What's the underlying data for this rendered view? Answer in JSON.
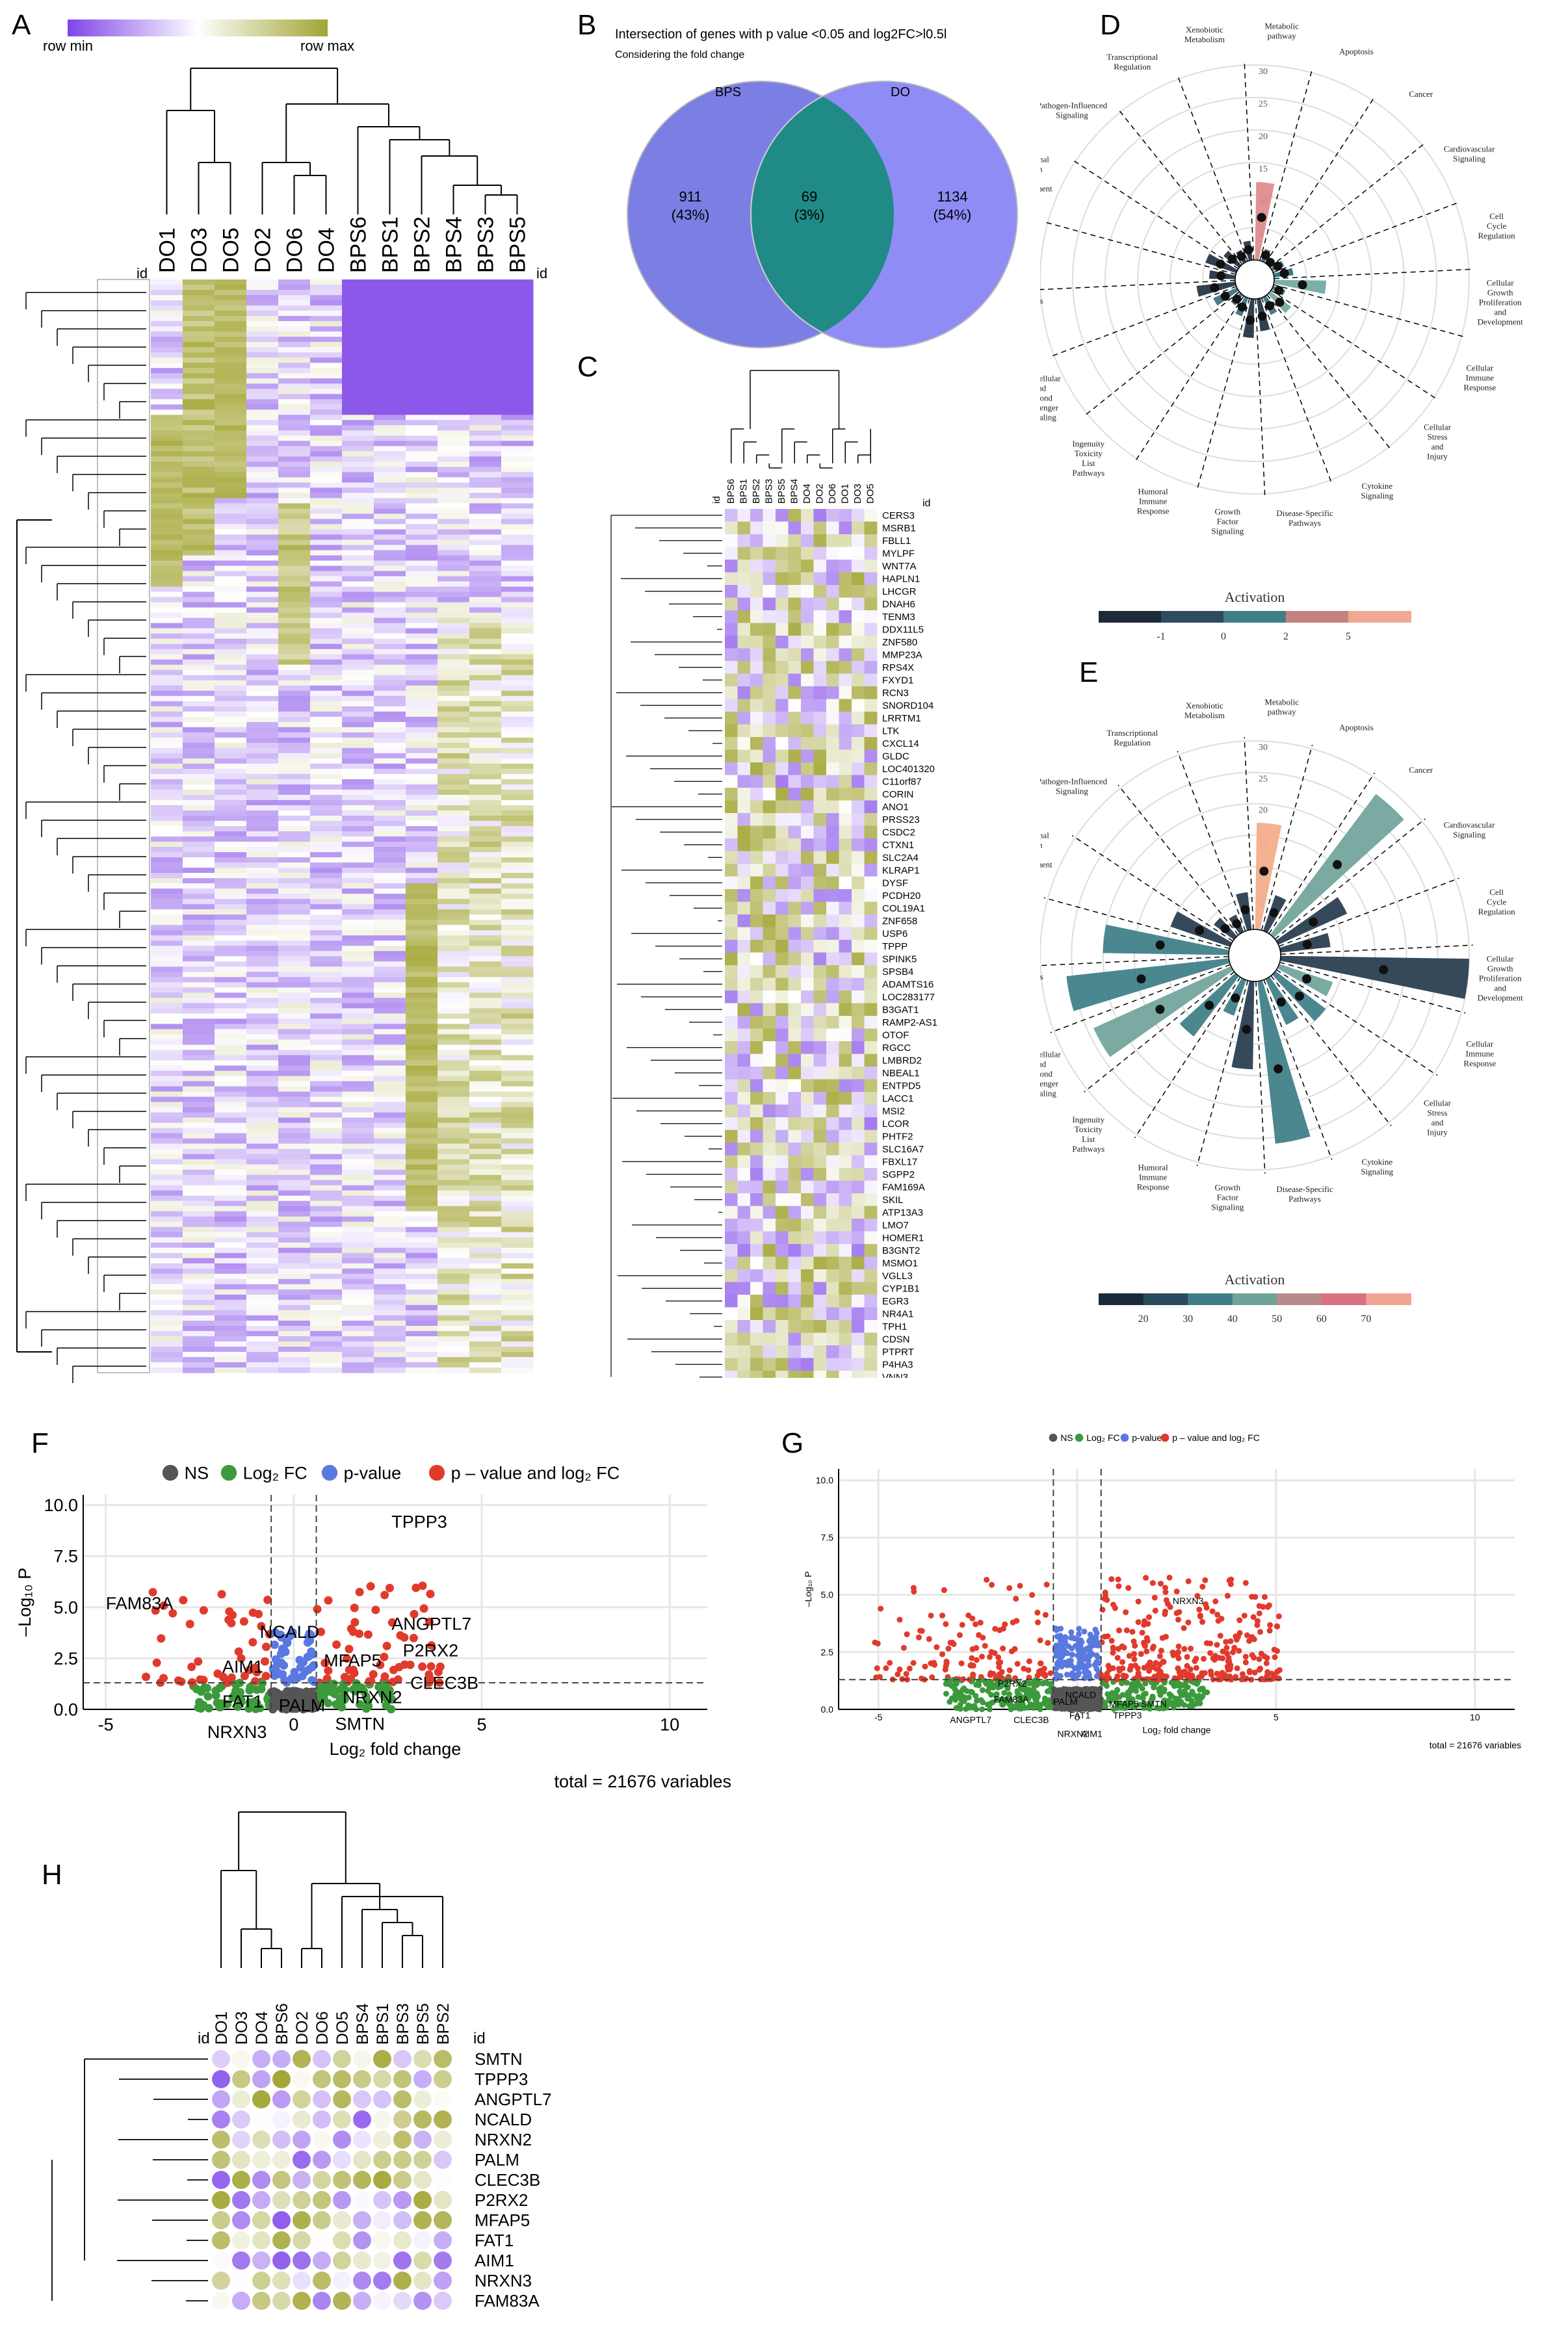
{
  "colors": {
    "row_min": "#7f45e8",
    "row_mid": "#ffffff",
    "row_max": "#a2a533",
    "venn_bps": "#7b7fe3",
    "venn_do": "#8f8cf5",
    "venn_overlap": "#1f8a86",
    "ns": "#555555",
    "fc": "#3c9a3c",
    "pval": "#5a79e0",
    "both": "#e03a2c",
    "radar_d_bar": "#de8a8a",
    "radar_e_bar": "#f3ab87"
  },
  "panelA": {
    "label": "A",
    "legend_min": "row min",
    "legend_max": "row max",
    "id_left": "id",
    "id_right": "id",
    "columns": [
      "DO1",
      "DO3",
      "DO5",
      "DO2",
      "DO6",
      "DO4",
      "BPS6",
      "BPS1",
      "BPS2",
      "BPS4",
      "BPS3",
      "BPS5"
    ]
  },
  "panelB": {
    "label": "B",
    "title": "Intersection of genes with p value <0.05 and log2FC>l0.5l",
    "subtitle": "Considering the fold change",
    "set_left": "BPS",
    "set_right": "DO",
    "left_count": "911",
    "left_pct": "(43%)",
    "mid_count": "69",
    "mid_pct": "(3%)",
    "right_count": "1134",
    "right_pct": "(54%)"
  },
  "panelC": {
    "label": "C",
    "id_top": "id",
    "id_side": "id",
    "columns": [
      "BPS6",
      "BPS1",
      "BPS2",
      "BPS3",
      "BPS5",
      "BPS4",
      "DO4",
      "DO2",
      "DO6",
      "DO1",
      "DO3",
      "DO5"
    ],
    "genes": [
      "CERS3",
      "MSRB1",
      "FBLL1",
      "MYLPF",
      "WNT7A",
      "HAPLN1",
      "LHCGR",
      "DNAH6",
      "TENM3",
      "DDX11L5",
      "ZNF580",
      "MMP23A",
      "RPS4X",
      "FXYD1",
      "RCN3",
      "SNORD104",
      "LRRTM1",
      "LTK",
      "CXCL14",
      "GLDC",
      "LOC401320",
      "C11orf87",
      "CORIN",
      "ANO1",
      "PRSS23",
      "CSDC2",
      "CTXN1",
      "SLC2A4",
      "KLRAP1",
      "DYSF",
      "PCDH20",
      "COL19A1",
      "ZNF658",
      "USP6",
      "TPPP",
      "SPINK5",
      "SPSB4",
      "ADAMTS16",
      "LOC283177",
      "B3GAT1",
      "RAMP2-AS1",
      "OTOF",
      "RGCC",
      "LMBRD2",
      "NBEAL1",
      "ENTPD5",
      "LACC1",
      "MSI2",
      "LCOR",
      "PHTF2",
      "SLC16A7",
      "FBXL17",
      "SGPP2",
      "FAM169A",
      "SKIL",
      "ATP13A3",
      "LMO7",
      "HOMER1",
      "B3GNT2",
      "MSMO1",
      "VGLL3",
      "CYP1B1",
      "EGR3",
      "NR4A1",
      "TPH1",
      "CDSN",
      "PTPRT",
      "P4HA3",
      "VNN3"
    ]
  },
  "panelD": {
    "label": "D",
    "categories": [
      "Metabolic pathway",
      "Apoptosis",
      "Cancer",
      "Cardiovascular Signaling",
      "Cell Cycle Regulation",
      "Cellular Growth, Proliferation and Development",
      "Cellular Immune Response",
      "Cellular Stress and Injury",
      "Cytokine Signaling",
      "Disease-Specific Pathways",
      "Growth Factor Signaling",
      "Humoral Immune Response",
      "Ingenuity Toxicity List Pathways",
      "Intracellular and Second Messenger Signaling",
      "Neurotransmitters and Other Nervous System Signaling",
      "Nuclear Receptor Signaling",
      "Organismal Growth and Development",
      "Pathogen-Influenced Signaling",
      "Transcriptional Regulation",
      "Xenobiotic Metabolism"
    ],
    "values": [
      12,
      2,
      1,
      2,
      3,
      8,
      2,
      4,
      3,
      5,
      6,
      3,
      2,
      4,
      6,
      4,
      5,
      3,
      2,
      3
    ],
    "activation": [
      5,
      0,
      0,
      0,
      1,
      2,
      0,
      3,
      0,
      -1,
      -1,
      0,
      0,
      0,
      -1,
      -1,
      -1,
      -1,
      -1,
      -1
    ],
    "rticks": [
      "5",
      "10",
      "15",
      "20",
      "25",
      "30"
    ],
    "legend_title": "Activation",
    "legend_ticks": [
      "-1",
      "0",
      "2",
      "5"
    ]
  },
  "panelE": {
    "label": "E",
    "categories": [
      "Metabolic pathway",
      "Apoptosis",
      "Cancer",
      "Cardiovascular Signaling",
      "Cell Cycle Regulation",
      "Cellular Growth, Proliferation and Development",
      "Cellular Immune Response",
      "Cellular Stress and Injury",
      "Cytokine Signaling",
      "Disease-Specific Pathways",
      "Growth Factor Signaling",
      "Humoral Immune Response",
      "Ingenuity Toxicity List Pathways",
      "Intracellular and Second Messenger Signaling",
      "Neurotransmitters and Other Nervous System Signaling",
      "Nuclear Receptor Signaling",
      "Organismal Growth and Development",
      "Pathogen-Influenced Signaling",
      "Transcriptional Regulation",
      "Xenobiotic Metabolism"
    ],
    "values": [
      17,
      6,
      28,
      12,
      8,
      30,
      9,
      10,
      8,
      26,
      14,
      6,
      12,
      24,
      26,
      20,
      10,
      4,
      3,
      6
    ],
    "activation": [
      70,
      20,
      40,
      20,
      20,
      20,
      40,
      30,
      30,
      30,
      20,
      30,
      30,
      40,
      30,
      30,
      20,
      20,
      20,
      20
    ],
    "rticks": [
      "5",
      "10",
      "15",
      "20",
      "25",
      "30"
    ],
    "legend_title": "Activation",
    "legend_ticks": [
      "20",
      "30",
      "40",
      "50",
      "60",
      "70"
    ]
  },
  "panelF": {
    "label": "F",
    "legend": [
      "NS",
      "Log₂ FC",
      "p-value",
      "p – value and log₂ FC"
    ],
    "xlabel": "Log₂ fold change",
    "ylabel": "–Log₁₀ P",
    "xticks": [
      "-5",
      "0",
      "5",
      "10"
    ],
    "yticks": [
      "0.0",
      "2.5",
      "5.0",
      "7.5",
      "10.0"
    ],
    "total": "total = 21676 variables",
    "genes": [
      "TPPP3",
      "FAM83A",
      "ANGPTL7",
      "P2RX2",
      "NCALD",
      "MFAP5",
      "AIM1",
      "CLEC3B",
      "NRXN2",
      "FAT1",
      "PALM",
      "SMTN",
      "NRXN3"
    ]
  },
  "panelG": {
    "label": "G",
    "legend": [
      "NS",
      "Log₂ FC",
      "p-value",
      "p – value and log₂ FC"
    ],
    "xlabel": "Log₂ fold change",
    "ylabel": "–Log₁₀ P",
    "xticks": [
      "-5",
      "0",
      "5",
      "10"
    ],
    "yticks": [
      "0.0",
      "2.5",
      "5.0",
      "7.5",
      "10.0"
    ],
    "total": "total = 21676 variables",
    "genes": [
      "NRXN3",
      "FAM83A",
      "PALM",
      "NCALD",
      "FAT1",
      "ANGPTL7",
      "CLEC3B",
      "MFAP5",
      "SMTN",
      "TPPP3",
      "NRXN2",
      "AIM1",
      "P2RX2"
    ]
  },
  "panelH": {
    "label": "H",
    "id_left": "id",
    "id_right": "id",
    "columns": [
      "DO1",
      "DO3",
      "DO4",
      "BPS6",
      "DO2",
      "DO6",
      "DO5",
      "BPS4",
      "BPS1",
      "BPS3",
      "BPS5",
      "BPS2"
    ],
    "genes": [
      "SMTN",
      "TPPP3",
      "ANGPTL7",
      "NCALD",
      "NRXN2",
      "PALM",
      "CLEC3B",
      "P2RX2",
      "MFAP5",
      "FAT1",
      "AIM1",
      "NRXN3",
      "FAM83A"
    ]
  },
  "chart_data": [
    {
      "type": "heatmap",
      "title": "",
      "xlabel": "",
      "ylabel": "",
      "categories": [
        "DO1",
        "DO3",
        "DO5",
        "DO2",
        "DO6",
        "DO4",
        "BPS6",
        "BPS1",
        "BPS2",
        "BPS4",
        "BPS3",
        "BPS5"
      ]
    },
    {
      "type": "other",
      "title": "Intersection of genes with p value <0.05 and log2FC>l0.5l",
      "sets": [
        "BPS",
        "DO"
      ],
      "values": [
        911,
        69,
        1134
      ]
    },
    {
      "type": "bar",
      "title": "Radar D",
      "ylim": [
        0,
        30
      ]
    },
    {
      "type": "bar",
      "title": "Radar E",
      "ylim": [
        0,
        30
      ]
    },
    {
      "type": "scatter",
      "title": "Volcano F",
      "xlim": [
        -5,
        11
      ],
      "ylim": [
        0,
        10.5
      ]
    },
    {
      "type": "scatter",
      "title": "Volcano G",
      "xlim": [
        -6,
        11
      ],
      "ylim": [
        0,
        10.5
      ]
    }
  ]
}
